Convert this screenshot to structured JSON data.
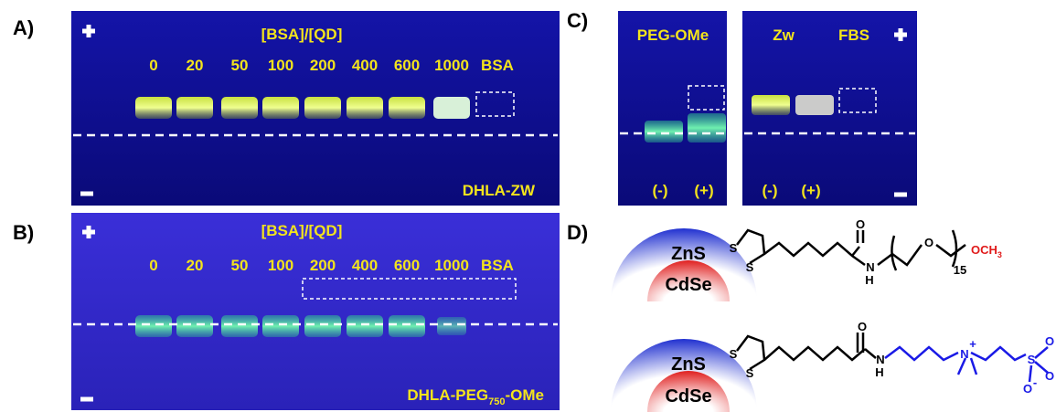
{
  "panels": {
    "a": {
      "label": "A)",
      "axis_title": "[BSA]/[QD]",
      "lanes": [
        "0",
        "20",
        "50",
        "100",
        "200",
        "400",
        "600",
        "1000",
        "BSA"
      ],
      "caption": "DHLA-ZW"
    },
    "b": {
      "label": "B)",
      "axis_title": "[BSA]/[QD]",
      "lanes": [
        "0",
        "20",
        "50",
        "100",
        "200",
        "400",
        "600",
        "1000",
        "BSA"
      ],
      "caption": {
        "main": "DHLA-PEG",
        "subscript": "750",
        "suffix": "-OMe"
      }
    },
    "c": {
      "label": "C)",
      "groups": [
        "PEG-OMe",
        "Zw",
        "FBS"
      ],
      "lanes": [
        "(-)",
        "(+)",
        "(-)",
        "(+)"
      ]
    },
    "d": {
      "label": "D)",
      "shell": "ZnS",
      "core": "CdSe",
      "peg_atoms": [
        "S",
        "S",
        "O",
        "N",
        "H",
        "O",
        "15",
        "OCH",
        "3"
      ],
      "zw_atoms": [
        "S",
        "S",
        "O",
        "N",
        "H",
        "N",
        "+",
        "S",
        "O",
        "O",
        "O",
        "-"
      ]
    }
  }
}
